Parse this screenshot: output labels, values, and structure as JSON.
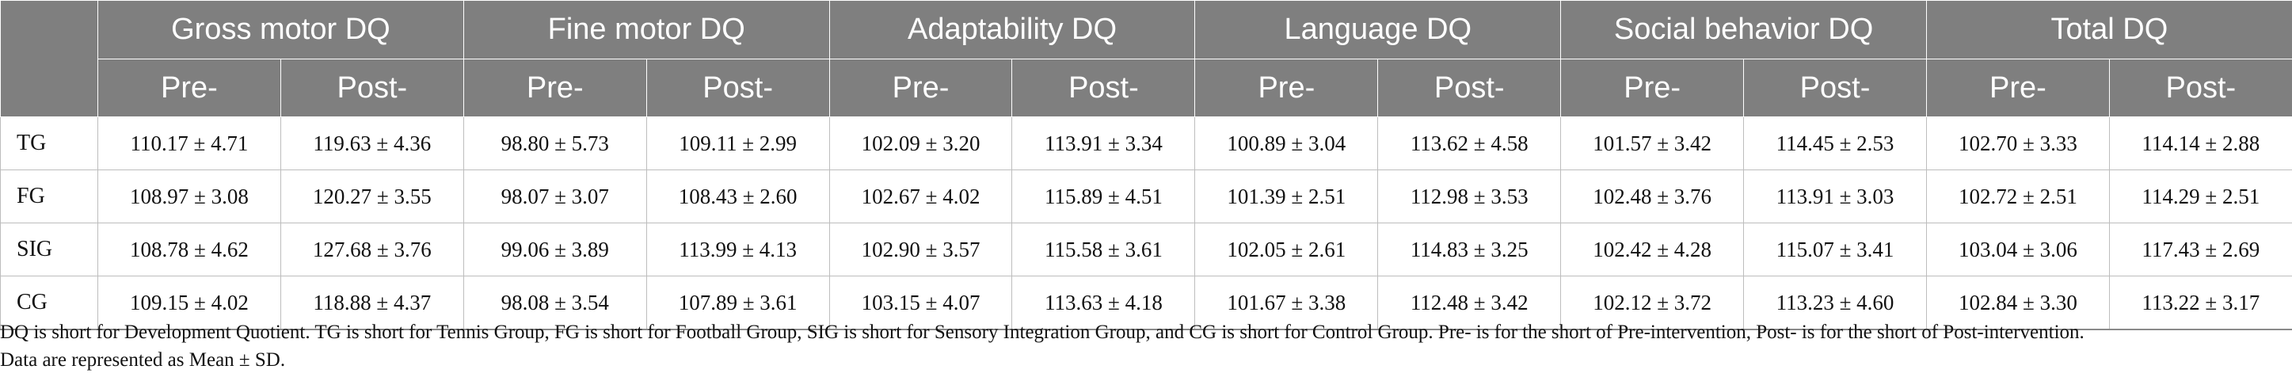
{
  "table": {
    "groups": [
      "Gross motor DQ",
      "Fine motor DQ",
      "Adaptability DQ",
      "Language DQ",
      "Social behavior DQ",
      "Total DQ"
    ],
    "sub_pre": "Pre-",
    "sub_post": "Post-",
    "rows": [
      {
        "label": "TG",
        "cells": [
          "110.17 ± 4.71",
          "119.63 ± 4.36",
          "98.80 ± 5.73",
          "109.11 ± 2.99",
          "102.09 ± 3.20",
          "113.91 ± 3.34",
          "100.89 ± 3.04",
          "113.62 ± 4.58",
          "101.57 ± 3.42",
          "114.45 ± 2.53",
          "102.70 ± 3.33",
          "114.14 ± 2.88"
        ]
      },
      {
        "label": "FG",
        "cells": [
          "108.97 ± 3.08",
          "120.27 ± 3.55",
          "98.07 ± 3.07",
          "108.43 ± 2.60",
          "102.67 ± 4.02",
          "115.89 ± 4.51",
          "101.39 ± 2.51",
          "112.98 ± 3.53",
          "102.48 ± 3.76",
          "113.91 ± 3.03",
          "102.72 ± 2.51",
          "114.29 ± 2.51"
        ]
      },
      {
        "label": "SIG",
        "cells": [
          "108.78 ± 4.62",
          "127.68 ± 3.76",
          "99.06 ± 3.89",
          "113.99 ± 4.13",
          "102.90 ± 3.57",
          "115.58 ± 3.61",
          "102.05 ± 2.61",
          "114.83 ± 3.25",
          "102.42 ± 4.28",
          "115.07 ± 3.41",
          "103.04 ± 3.06",
          "117.43 ± 2.69"
        ]
      },
      {
        "label": "CG",
        "cells": [
          "109.15 ± 4.02",
          "118.88 ± 4.37",
          "98.08 ± 3.54",
          "107.89 ± 3.61",
          "103.15 ± 4.07",
          "113.63 ± 4.18",
          "101.67 ± 3.38",
          "112.48 ± 3.42",
          "102.12 ± 3.72",
          "113.23 ± 4.60",
          "102.84 ± 3.30",
          "113.22 ± 3.17"
        ]
      }
    ]
  },
  "note": {
    "line1": "DQ is short for Development Quotient. TG is short for Tennis Group, FG is short for Football Group, SIG is short for Sensory Integration Group, and CG is short for Control Group. Pre- is for the short of Pre-intervention, Post- is for the short of Post-intervention.",
    "line2": "Data are represented as Mean ± SD."
  }
}
